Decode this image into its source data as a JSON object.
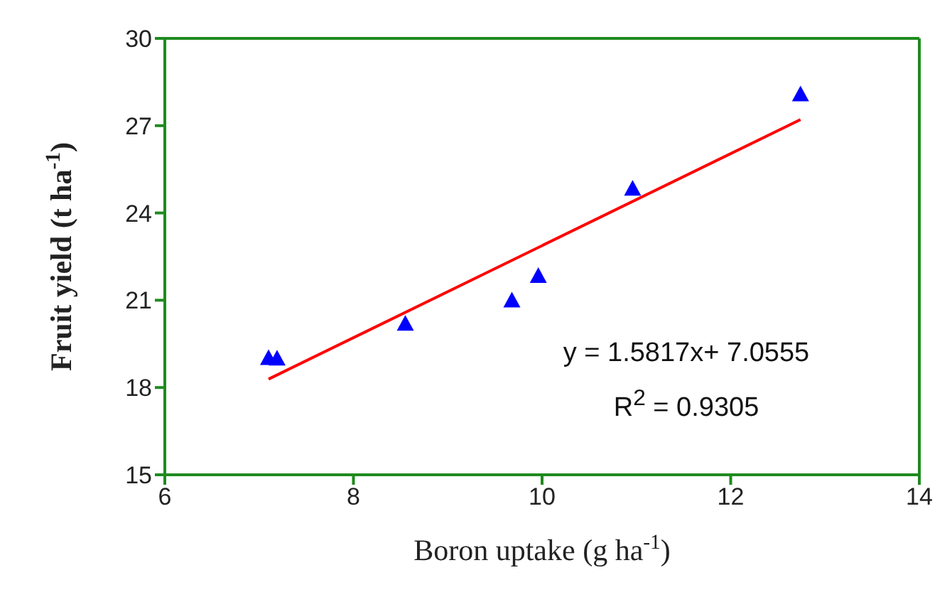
{
  "chart_data": {
    "type": "scatter",
    "xlabel": "Boron uptake (g ha$^{-1}$)",
    "ylabel": "Fruit yield (t ha$^{-1}$)",
    "xlim": [
      6,
      14
    ],
    "xticks": [
      6,
      8,
      10,
      12,
      14
    ],
    "ylim": [
      15,
      30
    ],
    "yticks": [
      15,
      18,
      21,
      24,
      27,
      30
    ],
    "grid": false,
    "legend": false,
    "marker": "triangle",
    "series": [
      {
        "type": "scatter",
        "color": "#0000ff",
        "x": [
          7.1,
          7.19,
          8.55,
          9.68,
          9.96,
          10.96,
          12.74
        ],
        "values": [
          19.02,
          19.0,
          20.2,
          21.0,
          21.84,
          24.84,
          28.08
        ]
      },
      {
        "type": "line",
        "color": "#ff0000",
        "marker": "none",
        "line_style": "solid",
        "x": [
          7.1,
          12.74
        ],
        "values": [
          18.29,
          27.21
        ]
      }
    ],
    "annotations": [
      "y = 1.5817x+ 7.0555",
      "R$^{2}$ = 0.9305"
    ]
  }
}
